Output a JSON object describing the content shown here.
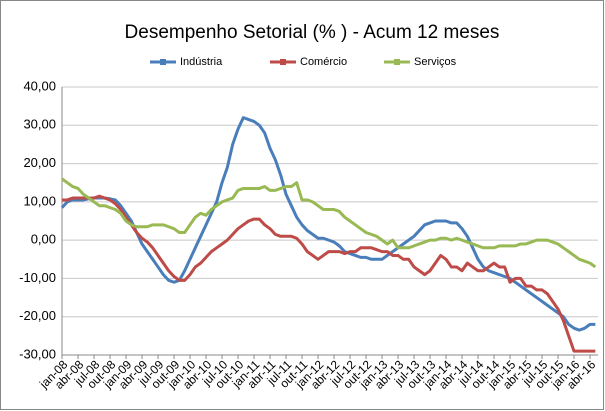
{
  "chart_data": {
    "type": "line",
    "title": "Desempenho Setorial (% ) - Acum 12 meses",
    "categories": [
      "jan-08",
      null,
      null,
      "abr-08",
      null,
      null,
      "jul-08",
      null,
      null,
      "out-08",
      null,
      null,
      "jan-09",
      null,
      null,
      "abr-09",
      null,
      null,
      "jul-09",
      null,
      null,
      "out-09",
      null,
      null,
      "jan-10",
      null,
      null,
      "abr-10",
      null,
      null,
      "jul-10",
      null,
      null,
      "out-10",
      null,
      null,
      "jan-11",
      null,
      null,
      "abr-11",
      null,
      null,
      "jul-11",
      null,
      null,
      "out-11",
      null,
      null,
      "jan-12",
      null,
      null,
      "abr-12",
      null,
      null,
      "jul-12",
      null,
      null,
      "out-12",
      null,
      null,
      "jan-13",
      null,
      null,
      "abr-13",
      null,
      null,
      "jul-13",
      null,
      null,
      "out-13",
      null,
      null,
      "jan-14",
      null,
      null,
      "abr-14",
      null,
      null,
      "jul-14",
      null,
      null,
      "out-14",
      null,
      null,
      "jan-15",
      null,
      null,
      "abr-15",
      null,
      null,
      "jul-15",
      null,
      null,
      "out-15",
      null,
      null,
      "jan-16",
      null,
      null,
      "abr-16",
      null
    ],
    "series": [
      {
        "name": "Indústria",
        "color": "#4a7ebb",
        "values": [
          8.5,
          10,
          10.5,
          10.5,
          10.5,
          10.8,
          11,
          11,
          11,
          10.8,
          10.5,
          9,
          7,
          5,
          2,
          -1,
          -3,
          -5,
          -7,
          -9,
          -10.5,
          -11,
          -10.5,
          -8,
          -5,
          -2,
          1,
          4,
          7,
          10,
          15,
          19,
          25,
          29,
          32,
          31.5,
          31,
          30,
          28,
          24,
          21,
          17,
          12,
          9,
          6,
          4,
          2.5,
          1.5,
          0.5,
          0.5,
          0,
          -0.5,
          -1.5,
          -3,
          -3.5,
          -4,
          -4.5,
          -4.5,
          -5,
          -5,
          -5,
          -4,
          -3,
          -2,
          -1,
          0,
          1,
          2.5,
          4,
          4.5,
          5,
          5,
          5,
          4.5,
          4.5,
          3,
          1,
          -2,
          -5,
          -7,
          -8,
          -8.5,
          -9,
          -9.5,
          -10,
          -11,
          -12,
          -13,
          -14,
          -15,
          -16,
          -17,
          -18,
          -19,
          -20,
          -22,
          -23,
          -23.5,
          -23,
          -22,
          -22
        ]
      },
      {
        "name": "Comércio",
        "color": "#be4b48",
        "values": [
          10.5,
          10.5,
          11,
          11,
          11,
          11,
          11,
          11.5,
          11,
          10.5,
          9.5,
          8,
          6,
          4,
          2,
          0.5,
          -0.5,
          -2,
          -4,
          -6,
          -8,
          -9.5,
          -10.5,
          -10.5,
          -9,
          -7,
          -6,
          -4.5,
          -3,
          -2,
          -1,
          0,
          1.5,
          3,
          4,
          5,
          5.5,
          5.5,
          4,
          3,
          1.5,
          1,
          1,
          1,
          0.5,
          -1,
          -3,
          -4,
          -5,
          -4,
          -3,
          -3,
          -3,
          -3.5,
          -3,
          -3,
          -2,
          -2,
          -2,
          -2.5,
          -3,
          -3,
          -4,
          -4,
          -5,
          -5,
          -7,
          -8,
          -9,
          -8,
          -6,
          -4,
          -5,
          -7,
          -7,
          -8,
          -6,
          -7,
          -8,
          -8,
          -7,
          -6,
          -7,
          -7,
          -11,
          -10,
          -10,
          -12,
          -12,
          -13,
          -13,
          -14,
          -16,
          -18,
          -21,
          -25,
          -29,
          -29,
          -29,
          -29,
          -29
        ]
      },
      {
        "name": "Serviços",
        "color": "#98b954",
        "values": [
          16,
          15,
          14,
          13.5,
          12,
          11,
          10,
          9,
          9,
          8.5,
          8,
          7,
          5,
          4,
          3.5,
          3.5,
          3.5,
          4,
          4,
          4,
          3.5,
          3,
          2,
          2,
          4,
          6,
          7,
          6.5,
          8,
          9,
          10,
          10.5,
          11,
          13,
          13.5,
          13.5,
          13.5,
          13.5,
          14,
          13,
          13,
          13.5,
          14,
          14,
          15,
          10.5,
          10.5,
          10,
          9,
          8,
          8,
          8,
          7.5,
          6,
          5,
          4,
          3,
          2,
          1.5,
          1,
          0,
          -1,
          0,
          -2,
          -2,
          -2,
          -1.5,
          -1,
          -0.5,
          0,
          0,
          0.5,
          0.5,
          0,
          0.5,
          0,
          -0.5,
          -1,
          -1.5,
          -2,
          -2,
          -2,
          -1.5,
          -1.5,
          -1.5,
          -1.5,
          -1,
          -1,
          -0.5,
          0,
          0,
          0,
          -0.5,
          -1,
          -2,
          -3,
          -4,
          -5,
          -5.5,
          -6,
          -7
        ]
      }
    ],
    "ylim": [
      -30,
      40
    ],
    "yticks": [
      {
        "value": -30,
        "label": "-30,00"
      },
      {
        "value": -20,
        "label": "-20,00"
      },
      {
        "value": -10,
        "label": "-10,00"
      },
      {
        "value": 0,
        "label": "0,00"
      },
      {
        "value": 10,
        "label": "10,00"
      },
      {
        "value": 20,
        "label": "20,00"
      },
      {
        "value": 30,
        "label": "30,00"
      },
      {
        "value": 40,
        "label": "40,00"
      }
    ],
    "grid": true,
    "legend": "top"
  }
}
